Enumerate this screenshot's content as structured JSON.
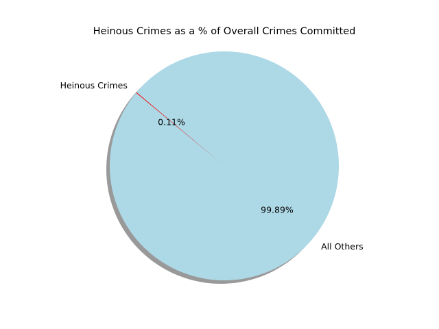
{
  "chart_data": {
    "type": "pie",
    "title": "Heinous Crimes as a % of Overall Crimes Committed",
    "slices": [
      {
        "label": "Heinous Crimes",
        "value": 0.11,
        "percent_label": "0.11%",
        "color": "#ff0000"
      },
      {
        "label": "All Others",
        "value": 99.89,
        "percent_label": "99.89%",
        "color": "#add8e6"
      }
    ],
    "start_angle_deg": 140,
    "shadow": true,
    "legend": "none"
  }
}
